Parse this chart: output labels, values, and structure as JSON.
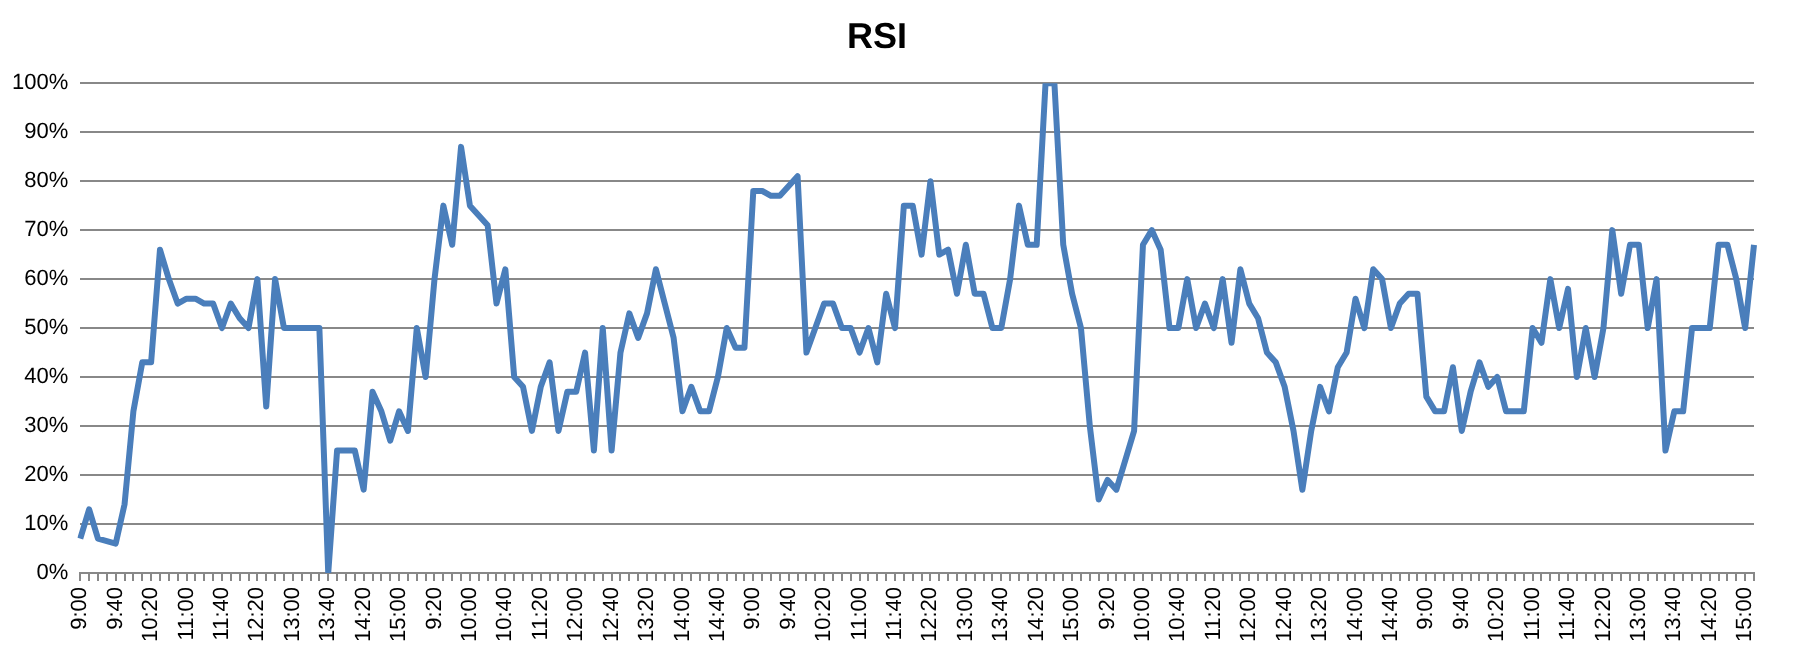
{
  "chart_data": {
    "type": "line",
    "title": "RSI",
    "categories": [
      "9:00",
      null,
      null,
      null,
      "9:40",
      null,
      null,
      null,
      "10:20",
      null,
      null,
      null,
      "11:00",
      null,
      null,
      null,
      "11:40",
      null,
      null,
      null,
      "12:20",
      null,
      null,
      null,
      "13:00",
      null,
      null,
      null,
      "13:40",
      null,
      null,
      null,
      "14:20",
      null,
      null,
      null,
      "15:00",
      null,
      null,
      null,
      "9:20",
      null,
      null,
      null,
      "10:00",
      null,
      null,
      null,
      "10:40",
      null,
      null,
      null,
      "11:20",
      null,
      null,
      null,
      "12:00",
      null,
      null,
      null,
      "12:40",
      null,
      null,
      null,
      "13:20",
      null,
      null,
      null,
      "14:00",
      null,
      null,
      null,
      "14:40",
      null,
      null,
      null,
      "9:00",
      null,
      null,
      null,
      "9:40",
      null,
      null,
      null,
      "10:20",
      null,
      null,
      null,
      "11:00",
      null,
      null,
      null,
      "11:40",
      null,
      null,
      null,
      "12:20",
      null,
      null,
      null,
      "13:00",
      null,
      null,
      null,
      "13:40",
      null,
      null,
      null,
      "14:20",
      null,
      null,
      null,
      "15:00",
      null,
      null,
      null,
      "9:20",
      null,
      null,
      null,
      "10:00",
      null,
      null,
      null,
      "10:40",
      null,
      null,
      null,
      "11:20",
      null,
      null,
      null,
      "12:00",
      null,
      null,
      null,
      "12:40",
      null,
      null,
      null,
      "13:20",
      null,
      null,
      null,
      "14:00",
      null,
      null,
      null,
      "14:40",
      null,
      null,
      null,
      "9:00",
      null,
      null,
      null,
      "9:40",
      null,
      null,
      null,
      "10:20",
      null,
      null,
      null,
      "11:00",
      null,
      null,
      null,
      "11:40",
      null,
      null,
      null,
      "12:20",
      null,
      null,
      null,
      "13:00",
      null,
      null,
      null,
      "13:40",
      null,
      null,
      null,
      "14:20",
      null,
      null,
      null,
      "15:00",
      null
    ],
    "series": [
      {
        "color": "#4a7ebb",
        "values": [
          7,
          13,
          7,
          6.5,
          6,
          14,
          33,
          43,
          43,
          66,
          60,
          55,
          56,
          56,
          55,
          55,
          50,
          55,
          52,
          50,
          60,
          34,
          60,
          50,
          50,
          50,
          50,
          50,
          0,
          25,
          25,
          25,
          17,
          37,
          33,
          27,
          33,
          29,
          50,
          40,
          60,
          75,
          67,
          87,
          75,
          73,
          71,
          55,
          62,
          40,
          38,
          29,
          38,
          43,
          29,
          37,
          37,
          45,
          25,
          50,
          25,
          45,
          53,
          48,
          53,
          62,
          55,
          48,
          33,
          38,
          33,
          33,
          40,
          50,
          46,
          46,
          78,
          78,
          77,
          77,
          79,
          81,
          45,
          50,
          55,
          55,
          50,
          50,
          45,
          50,
          43,
          57,
          50,
          75,
          75,
          65,
          80,
          65,
          66,
          57,
          67,
          57,
          57,
          50,
          50,
          60,
          75,
          67,
          67,
          100,
          100,
          67,
          57,
          50,
          30,
          15,
          19,
          17,
          23,
          29,
          67,
          70,
          66,
          50,
          50,
          60,
          50,
          55,
          50,
          60,
          47,
          62,
          55,
          52,
          45,
          43,
          38,
          29,
          17,
          29,
          38,
          33,
          42,
          45,
          56,
          50,
          62,
          60,
          50,
          55,
          57,
          57,
          36,
          33,
          33,
          42,
          29,
          37,
          43,
          38,
          40,
          33,
          33,
          33,
          50,
          47,
          60,
          50,
          58,
          40,
          50,
          40,
          50,
          70,
          57,
          67,
          67,
          50,
          60,
          25,
          33,
          33,
          50,
          50,
          50,
          67,
          67,
          60,
          50,
          67
        ]
      }
    ],
    "ylim": [
      0,
      100
    ],
    "yticks": [
      {
        "value": 0,
        "label": "0%"
      },
      {
        "value": 10,
        "label": "10%"
      },
      {
        "value": 20,
        "label": "20%"
      },
      {
        "value": 30,
        "label": "30%"
      },
      {
        "value": 40,
        "label": "40%"
      },
      {
        "value": 50,
        "label": "50%"
      },
      {
        "value": 60,
        "label": "60%"
      },
      {
        "value": 70,
        "label": "70%"
      },
      {
        "value": 80,
        "label": "80%"
      },
      {
        "value": 90,
        "label": "90%"
      },
      {
        "value": 100,
        "label": "100%"
      }
    ],
    "grid": "y",
    "legend": false,
    "marker": "none",
    "line_style": "solid"
  }
}
